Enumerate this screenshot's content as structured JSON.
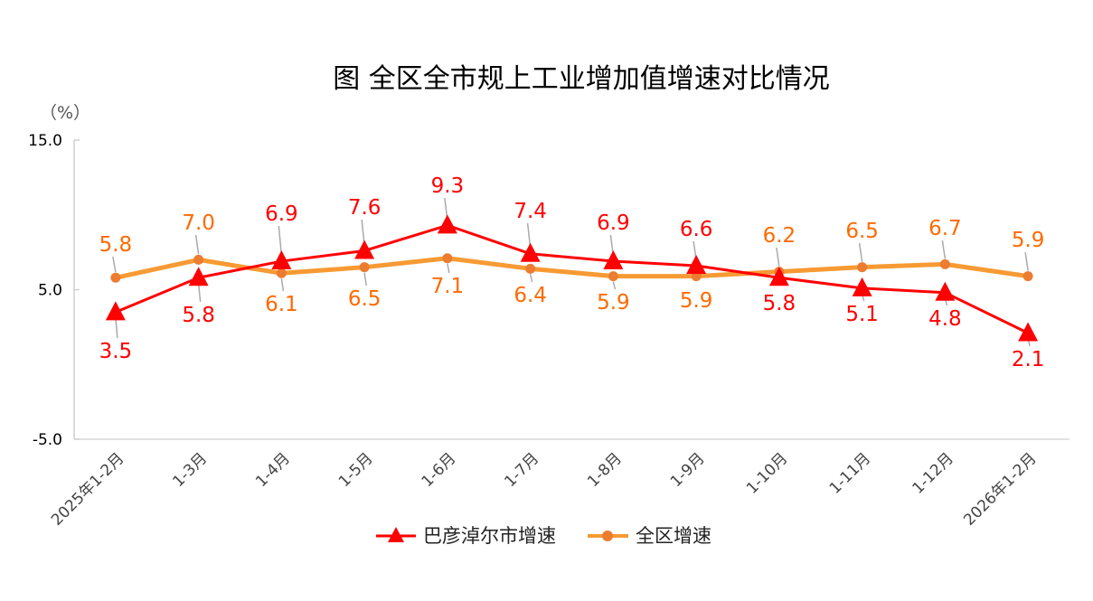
{
  "chart_data": {
    "type": "line",
    "title": "图 全区全市规上工业增加值增速对比情况",
    "ylabel": "（%）",
    "ylim": [
      -5,
      15
    ],
    "yticks": [
      "15.0",
      "5.0",
      "-5.0"
    ],
    "ytick_values": [
      15,
      5,
      -5
    ],
    "categories": [
      "2025年1-2月",
      "1-3月",
      "1-4月",
      "1-5月",
      "1-6月",
      "1-7月",
      "1-8月",
      "1-9月",
      "1-10月",
      "1-11月",
      "1-12月",
      "2026年1-2月"
    ],
    "legend_position": "bottom",
    "grid": false,
    "series": [
      {
        "name": "巴彦淖尔市增速",
        "color": "#ff0000",
        "label_color": "#ff0000",
        "marker": "triangle",
        "values": [
          3.5,
          5.8,
          6.9,
          7.6,
          9.3,
          7.4,
          6.9,
          6.6,
          5.8,
          5.1,
          4.8,
          2.1
        ],
        "labels": [
          "3.5",
          "5.8",
          "6.9",
          "7.6",
          "9.3",
          "7.4",
          "6.9",
          "6.6",
          "5.8",
          "5.1",
          "4.8",
          "2.1"
        ]
      },
      {
        "name": "全区增速",
        "color": "#f79a33",
        "marker_color": "#ec7c30",
        "label_color": "#ff6a00",
        "marker": "circle",
        "values": [
          5.8,
          7.0,
          6.1,
          6.5,
          7.1,
          6.4,
          5.9,
          5.9,
          6.2,
          6.5,
          6.7,
          5.9
        ],
        "labels": [
          "5.8",
          "7.0",
          "6.1",
          "6.5",
          "7.1",
          "6.4",
          "5.9",
          "5.9",
          "6.2",
          "6.5",
          "6.7",
          "5.9"
        ]
      }
    ]
  }
}
